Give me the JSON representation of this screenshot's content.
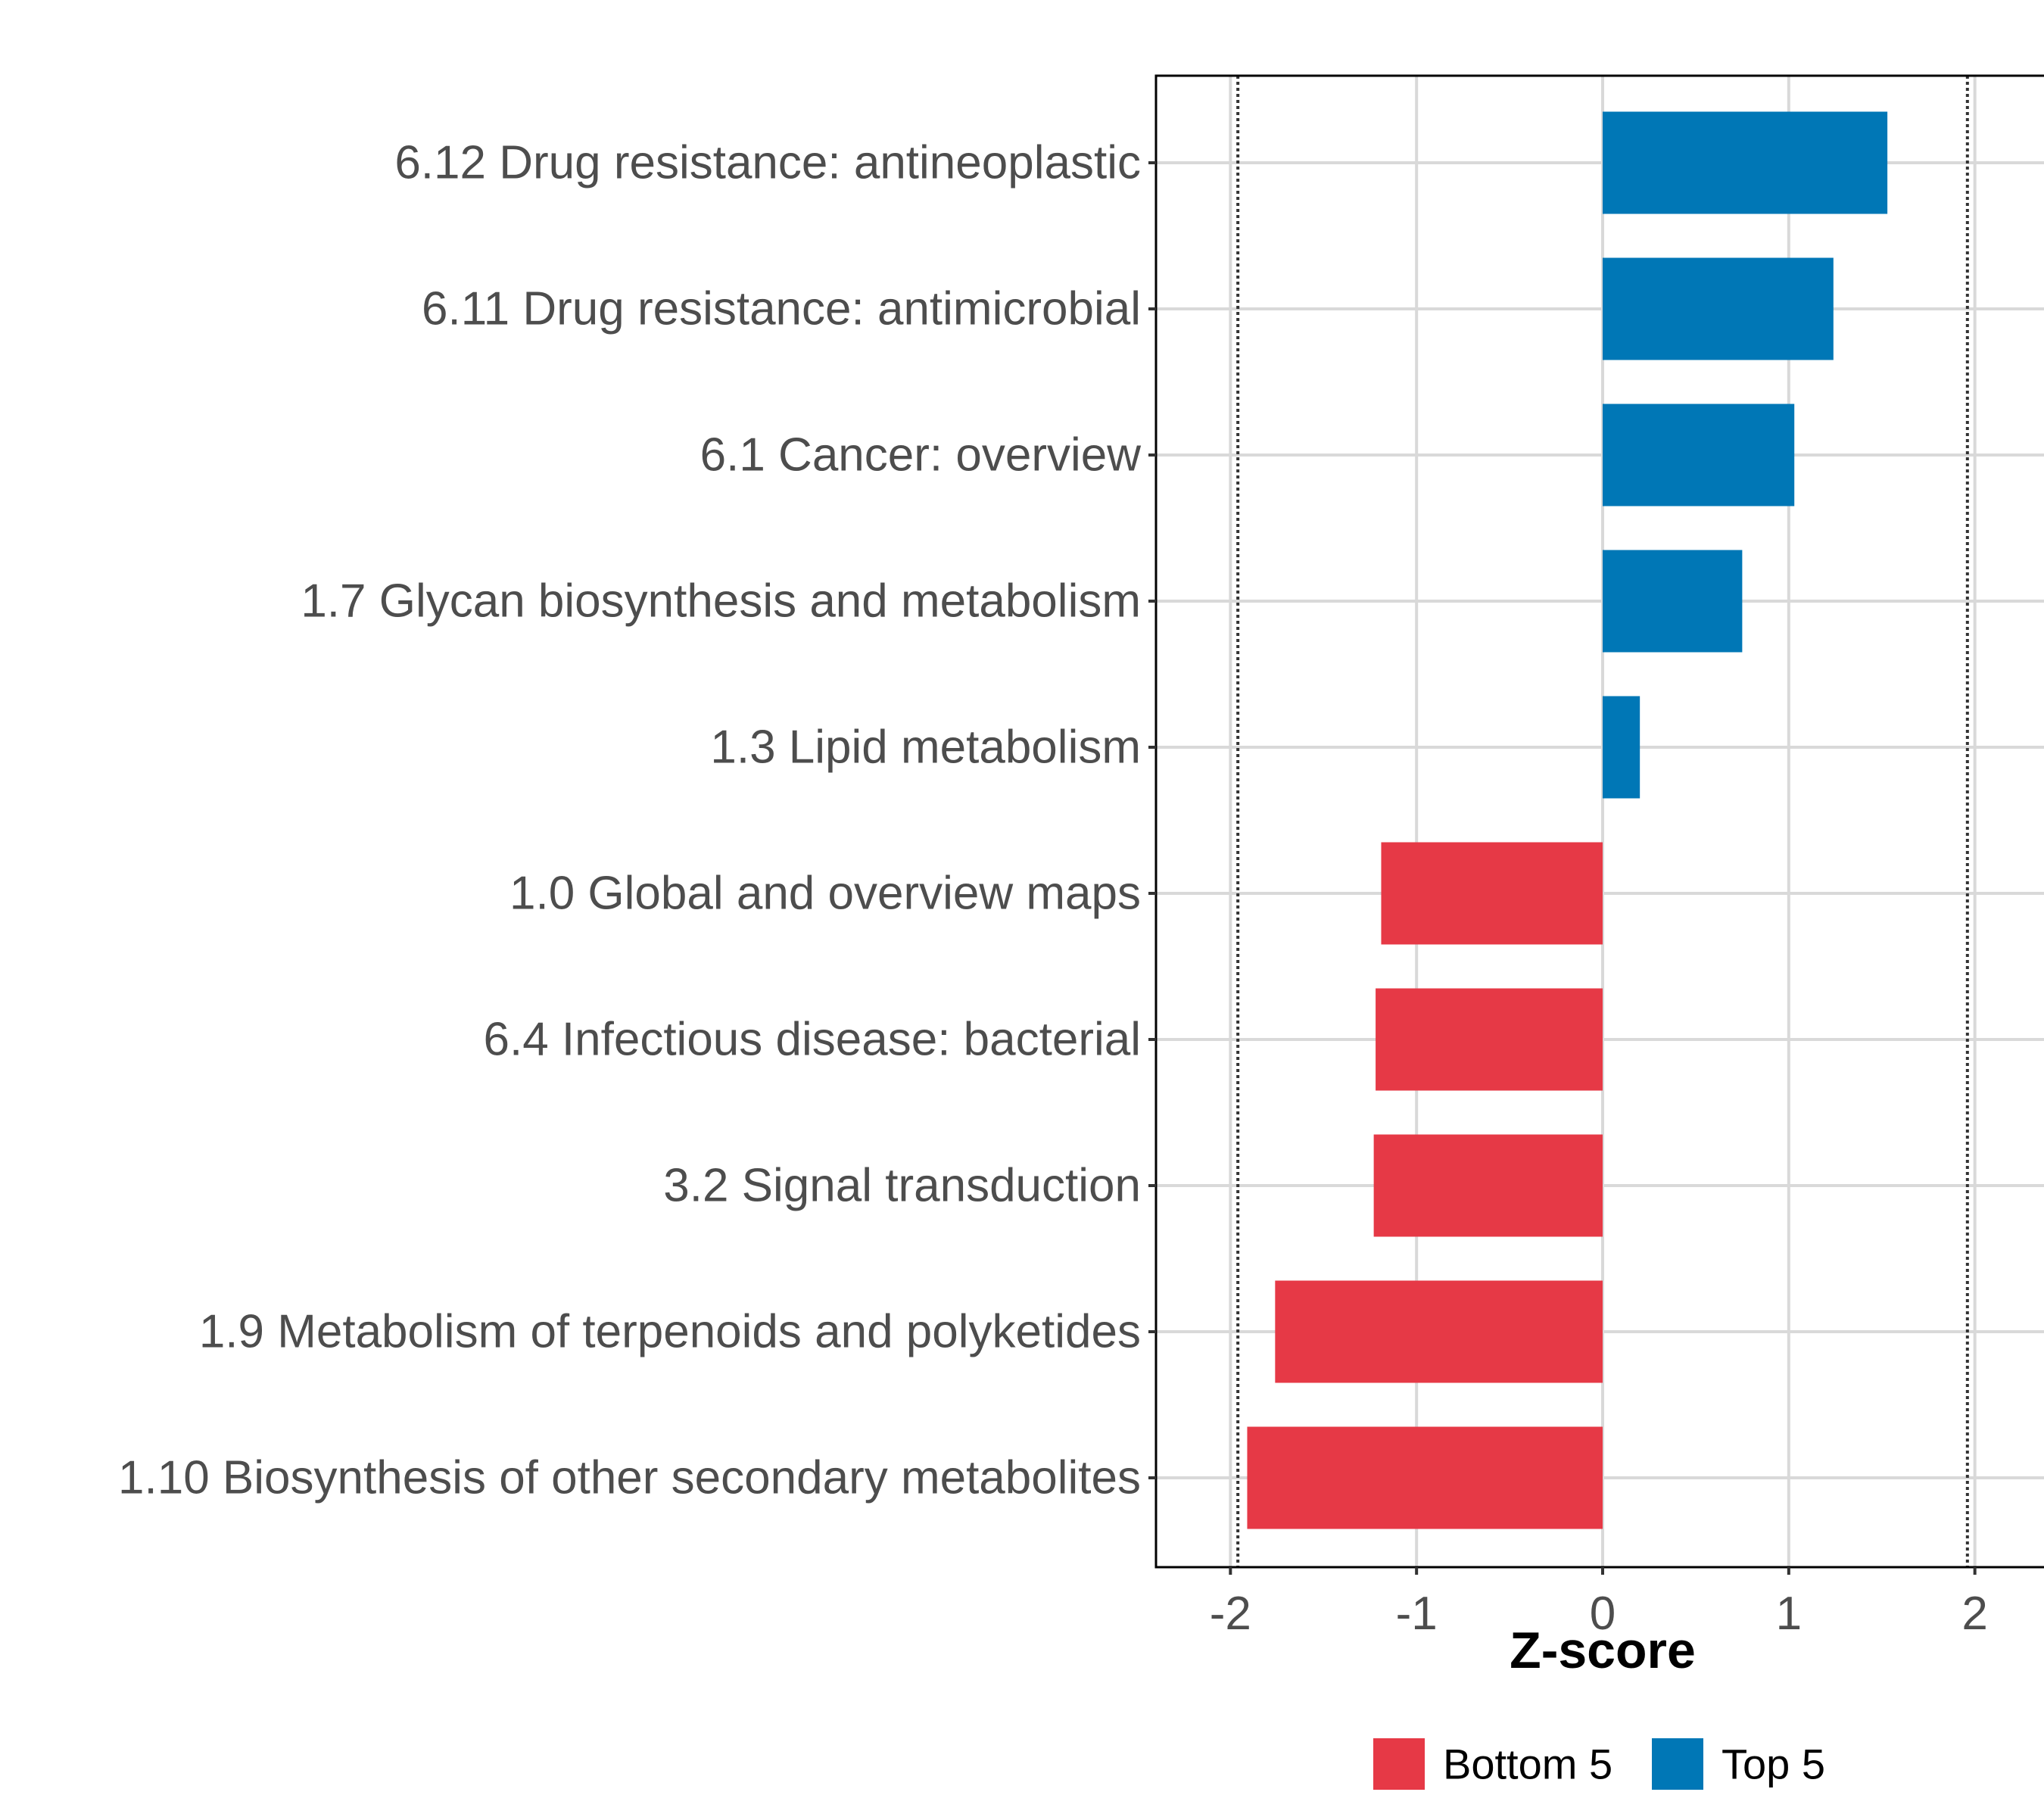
{
  "chart_data": {
    "type": "bar",
    "orientation": "horizontal",
    "title": "",
    "xlabel": "Z-score",
    "ylabel": "",
    "xlim": [
      -2.4,
      2.4
    ],
    "xticks": [
      -2,
      -1,
      0,
      1,
      2
    ],
    "xtick_labels": [
      "-2",
      "-1",
      "0",
      "1",
      "2"
    ],
    "reference_lines": [
      -1.96,
      1.96
    ],
    "grid": true,
    "legend_position": "bottom",
    "categories": [
      "6.12 Drug resistance: antineoplastic",
      "6.11 Drug resistance: antimicrobial",
      "6.1 Cancer: overview",
      "1.7 Glycan biosynthesis and metabolism",
      "1.3 Lipid metabolism",
      "1.0 Global and overview maps",
      "6.4 Infectious disease: bacterial",
      "3.2 Signal transduction",
      "1.9 Metabolism of terpenoids and polyketides",
      "1.10 Biosynthesis of other secondary metabolites"
    ],
    "values": [
      1.53,
      1.24,
      1.03,
      0.75,
      0.2,
      -1.19,
      -1.22,
      -1.23,
      -1.76,
      -1.91
    ],
    "groups": [
      "Top 5",
      "Top 5",
      "Top 5",
      "Top 5",
      "Top 5",
      "Bottom 5",
      "Bottom 5",
      "Bottom 5",
      "Bottom 5",
      "Bottom 5"
    ],
    "legend": [
      {
        "name": "Bottom 5",
        "color": "#e63946"
      },
      {
        "name": "Top 5",
        "color": "#0077b6"
      }
    ]
  }
}
